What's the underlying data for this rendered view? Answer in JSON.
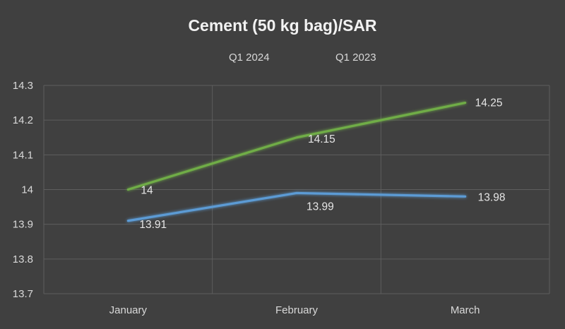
{
  "chart_data": {
    "type": "line",
    "title": "Cement (50 kg bag)/SAR",
    "categories": [
      "January",
      "February",
      "March"
    ],
    "series": [
      {
        "name": "Q1 2024",
        "values": [
          14,
          14.15,
          14.25
        ],
        "labels": [
          "14",
          "14.15",
          "14.25"
        ],
        "color": "#70ad47"
      },
      {
        "name": "Q1 2023",
        "values": [
          13.91,
          13.99,
          13.98
        ],
        "labels": [
          "13.91",
          "13.99",
          "13.98"
        ],
        "color": "#5b9bd5"
      }
    ],
    "ylim": [
      13.7,
      14.3
    ],
    "yticks": [
      13.7,
      13.8,
      13.9,
      14,
      14.1,
      14.2,
      14.3
    ],
    "ytick_labels": [
      "13.7",
      "13.8",
      "13.9",
      "14",
      "14.1",
      "14.2",
      "14.3"
    ],
    "legend": "top",
    "grid": true,
    "background": "#404040",
    "grid_color": "#5e5e5e",
    "text_color": "#d9d9d9"
  }
}
